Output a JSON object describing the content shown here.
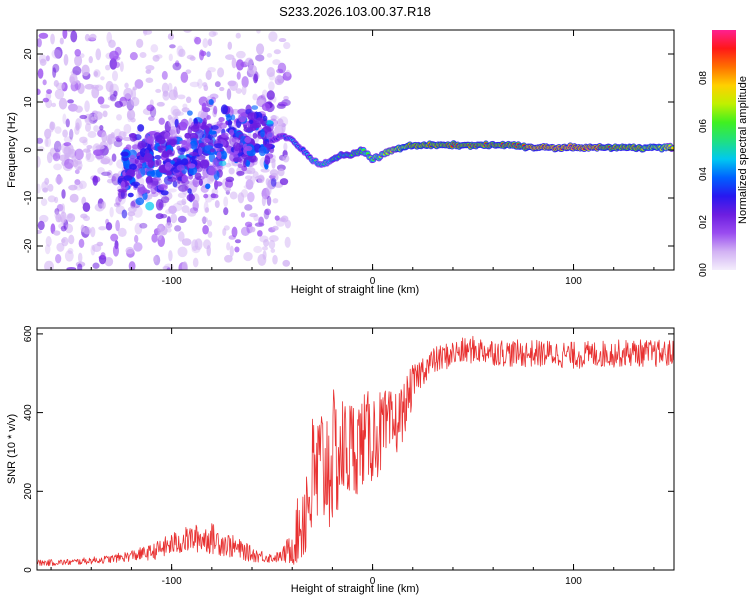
{
  "title": "S233.2026.103.00.37.R18",
  "colors": {
    "line": "#e83030",
    "axis": "#000000",
    "colormap": [
      "#f4eefc",
      "#d2b2f4",
      "#9a4cf0",
      "#6d1ee0",
      "#2818f0",
      "#0060ff",
      "#00c8f0",
      "#20e080",
      "#40f020",
      "#c0f000",
      "#ffd000",
      "#ff7000",
      "#ff1818",
      "#ff2090"
    ]
  },
  "chart_data": [
    {
      "type": "heatmap",
      "name": "spectrogram",
      "title": "S233.2026.103.00.37.R18",
      "xlabel": "Height of straight line (km)",
      "ylabel": "Frequency (Hz)",
      "xlim": [
        -167,
        150
      ],
      "ylim": [
        -25,
        25
      ],
      "xticks": [
        -100,
        0,
        100
      ],
      "yticks": [
        -20,
        -10,
        0,
        10,
        20
      ],
      "xtick_labels": [
        "-100",
        "0",
        "100"
      ],
      "ytick_labels": [
        "-20",
        "-10",
        "0",
        "10",
        "20"
      ],
      "colorbar": {
        "label": "Normalized spectral amplitude",
        "range": [
          0,
          1
        ],
        "ticks": [
          0.0,
          0.2,
          0.4,
          0.6,
          0.8
        ],
        "tick_labels": [
          "0.0",
          "0.2",
          "0.4",
          "0.6",
          "0.8"
        ]
      },
      "ridge": {
        "x": [
          -50,
          -45,
          -40,
          -35,
          -30,
          -25,
          -20,
          -15,
          -10,
          -5,
          0,
          5,
          10,
          15,
          20,
          30,
          40,
          50,
          60,
          70,
          80,
          90,
          100,
          110,
          120,
          130,
          140,
          150
        ],
        "y": [
          2,
          3,
          2,
          0,
          -2,
          -3,
          -2,
          -1,
          -1,
          0,
          -2,
          -1,
          0,
          0.5,
          1,
          1,
          1,
          1,
          1,
          1,
          0.5,
          0.5,
          0.5,
          0.5,
          0.5,
          0.5,
          0.5,
          0.5
        ],
        "amplitude": [
          0.3,
          0.35,
          0.45,
          0.45,
          0.5,
          0.5,
          0.55,
          0.55,
          0.6,
          0.6,
          0.65,
          0.7,
          0.75,
          0.8,
          0.85,
          0.85,
          0.9,
          0.9,
          0.9,
          0.9,
          0.95,
          0.95,
          0.95,
          0.95,
          0.9,
          0.85,
          0.8,
          0.75
        ]
      }
    },
    {
      "type": "line",
      "name": "snr",
      "xlabel": "Height of straight line (km)",
      "ylabel": "SNR (10 * v/v)",
      "xlim": [
        -167,
        150
      ],
      "ylim": [
        0,
        615
      ],
      "xticks": [
        -100,
        0,
        100
      ],
      "yticks": [
        0,
        200,
        400,
        600
      ],
      "xtick_labels": [
        "-100",
        "0",
        "100"
      ],
      "ytick_labels": [
        "0",
        "200",
        "400",
        "600"
      ],
      "series": [
        {
          "name": "SNR",
          "x": [
            -167,
            -150,
            -130,
            -110,
            -100,
            -90,
            -80,
            -70,
            -60,
            -50,
            -45,
            -40,
            -35,
            -30,
            -25,
            -20,
            -15,
            -10,
            -5,
            0,
            5,
            10,
            15,
            20,
            25,
            30,
            40,
            50,
            60,
            70,
            80,
            90,
            100,
            110,
            120,
            130,
            140,
            150
          ],
          "mean": [
            18,
            20,
            28,
            45,
            65,
            80,
            80,
            60,
            40,
            30,
            35,
            60,
            130,
            220,
            260,
            280,
            300,
            310,
            330,
            340,
            350,
            360,
            400,
            470,
            510,
            530,
            550,
            560,
            555,
            550,
            550,
            550,
            545,
            548,
            550,
            552,
            550,
            550
          ],
          "noise": [
            8,
            8,
            10,
            20,
            30,
            35,
            40,
            30,
            20,
            12,
            15,
            40,
            100,
            150,
            150,
            150,
            120,
            110,
            100,
            100,
            90,
            80,
            60,
            45,
            40,
            35,
            35,
            35,
            35,
            35,
            35,
            35,
            35,
            35,
            35,
            35,
            35,
            35
          ]
        }
      ]
    }
  ]
}
